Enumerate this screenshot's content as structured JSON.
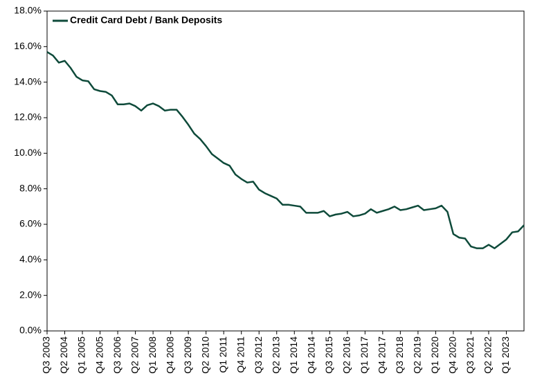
{
  "chart_data": {
    "type": "line",
    "categories": [
      "Q3 2003",
      null,
      null,
      "Q2 2004",
      null,
      null,
      "Q1 2005",
      null,
      null,
      "Q4 2005",
      null,
      null,
      "Q3 2006",
      null,
      null,
      "Q2 2007",
      null,
      null,
      "Q1 2008",
      null,
      null,
      "Q4 2008",
      null,
      null,
      "Q3 2009",
      null,
      null,
      "Q2 2010",
      null,
      null,
      "Q1 2011",
      null,
      null,
      "Q4 2011",
      null,
      null,
      "Q3 2012",
      null,
      null,
      "Q2 2013",
      null,
      null,
      "Q1 2014",
      null,
      null,
      "Q4 2014",
      null,
      null,
      "Q3 2015",
      null,
      null,
      "Q2 2016",
      null,
      null,
      "Q1 2017",
      null,
      null,
      "Q4 2017",
      null,
      null,
      "Q3 2018",
      null,
      null,
      "Q2 2019",
      null,
      null,
      "Q1 2020",
      null,
      null,
      "Q4 2020",
      null,
      null,
      "Q3 2021",
      null,
      null,
      "Q2 2022",
      null,
      null,
      "Q1 2023",
      null,
      null,
      null
    ],
    "series": [
      {
        "name": "Credit Card Debt / Bank Deposits",
        "color": "#0e4a3a",
        "values": [
          15.7,
          15.5,
          15.1,
          15.2,
          14.8,
          14.3,
          14.1,
          14.05,
          13.6,
          13.5,
          13.45,
          13.25,
          12.75,
          12.75,
          12.8,
          12.65,
          12.4,
          12.7,
          12.8,
          12.65,
          12.4,
          12.45,
          12.45,
          12.05,
          11.6,
          11.1,
          10.8,
          10.4,
          9.95,
          9.7,
          9.45,
          9.3,
          8.8,
          8.55,
          8.35,
          8.4,
          7.95,
          7.75,
          7.6,
          7.45,
          7.1,
          7.1,
          7.05,
          7.0,
          6.65,
          6.65,
          6.65,
          6.75,
          6.45,
          6.55,
          6.6,
          6.7,
          6.45,
          6.5,
          6.6,
          6.85,
          6.65,
          6.75,
          6.85,
          7.0,
          6.8,
          6.85,
          6.95,
          7.05,
          6.8,
          6.85,
          6.9,
          7.05,
          6.7,
          5.45,
          5.25,
          5.2,
          4.75,
          4.65,
          4.65,
          4.85,
          4.65,
          4.9,
          5.15,
          5.55,
          5.6,
          5.95
        ]
      }
    ],
    "ylim": [
      0,
      18
    ],
    "yticks": [
      {
        "value": 0,
        "label": "0.0%"
      },
      {
        "value": 2,
        "label": "2.0%"
      },
      {
        "value": 4,
        "label": "4.0%"
      },
      {
        "value": 6,
        "label": "6.0%"
      },
      {
        "value": 8,
        "label": "8.0%"
      },
      {
        "value": 10,
        "label": "10.0%"
      },
      {
        "value": 12,
        "label": "12.0%"
      },
      {
        "value": 14,
        "label": "14.0%"
      },
      {
        "value": 16,
        "label": "16.0%"
      },
      {
        "value": 18,
        "label": "18.0%"
      }
    ],
    "grid": false,
    "legend": "top-left"
  }
}
